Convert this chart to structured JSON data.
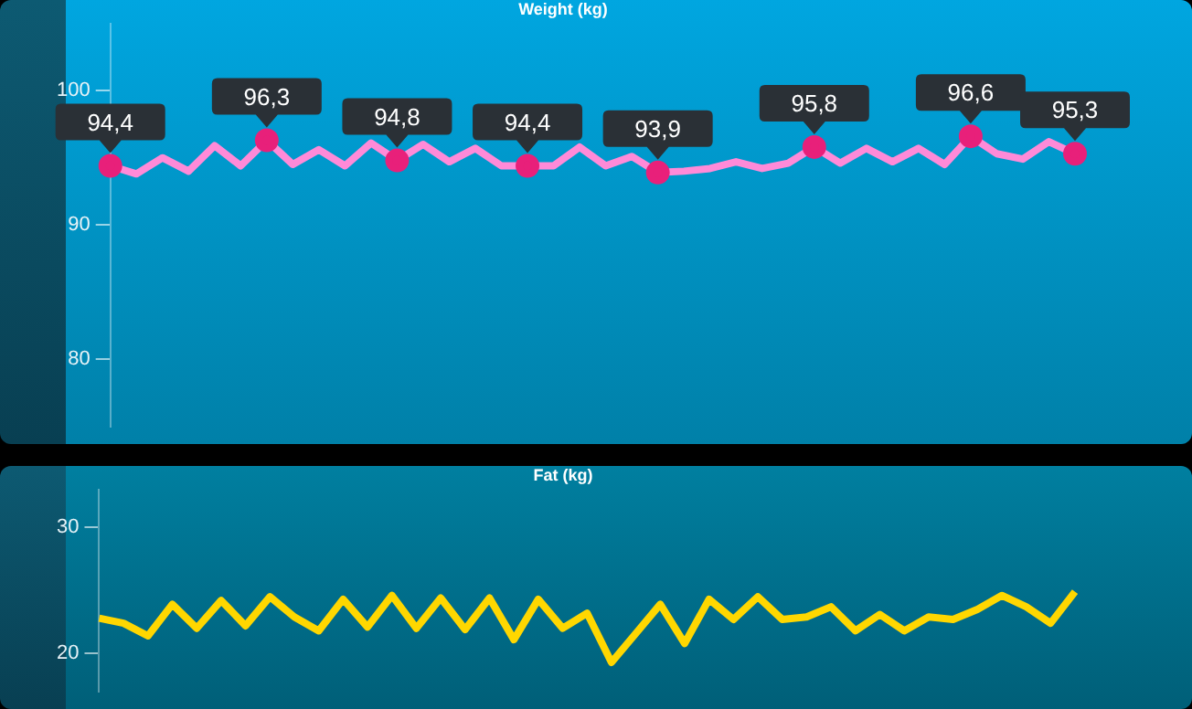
{
  "chart_data": [
    {
      "type": "line",
      "title": "Weight (kg)",
      "categories": [
        null,
        null,
        null,
        null,
        null,
        null,
        null,
        null,
        null,
        null,
        null,
        null,
        null,
        null,
        null,
        null,
        null,
        null,
        null,
        null,
        null,
        null,
        null,
        null,
        null,
        null,
        null,
        null,
        null,
        null,
        null,
        null,
        null,
        null,
        null,
        null,
        null,
        null
      ],
      "series": [
        {
          "color": "#ff8ad8",
          "values": [
            94.4,
            93.8,
            95.0,
            94.0,
            95.9,
            94.4,
            96.3,
            94.5,
            95.6,
            94.4,
            96.1,
            94.8,
            96.0,
            94.7,
            95.7,
            94.4,
            94.4,
            94.4,
            95.8,
            94.4,
            95.1,
            93.9,
            94.0,
            94.2,
            94.7,
            94.2,
            94.6,
            95.8,
            94.6,
            95.7,
            94.7,
            95.7,
            94.5,
            96.6,
            95.3,
            94.9,
            96.2,
            95.3
          ],
          "value_labels": [
            "94,4",
            null,
            null,
            null,
            null,
            null,
            "96,3",
            null,
            null,
            null,
            null,
            "94,8",
            null,
            null,
            null,
            null,
            "94,4",
            null,
            null,
            null,
            null,
            "93,9",
            null,
            null,
            null,
            null,
            null,
            "95,8",
            null,
            null,
            null,
            null,
            null,
            "96,6",
            null,
            null,
            null,
            "95,3"
          ]
        }
      ],
      "ylim": [
        75,
        105
      ],
      "yticks": [
        80,
        90,
        100
      ],
      "grid": false,
      "legend": false,
      "tick_labels": "y"
    },
    {
      "type": "line",
      "title": "Fat (kg)",
      "categories": [
        null,
        null,
        null,
        null,
        null,
        null,
        null,
        null,
        null,
        null,
        null,
        null,
        null,
        null,
        null,
        null,
        null,
        null,
        null,
        null,
        null,
        null,
        null,
        null,
        null,
        null,
        null,
        null,
        null,
        null,
        null,
        null,
        null,
        null,
        null,
        null,
        null,
        null,
        null,
        null,
        null
      ],
      "series": [
        {
          "color": "#ffd700",
          "values": [
            22.8,
            22.4,
            21.4,
            23.9,
            22.0,
            24.2,
            22.2,
            24.5,
            22.9,
            21.8,
            24.3,
            22.1,
            24.6,
            22.0,
            24.4,
            21.9,
            24.4,
            21.1,
            24.3,
            22.0,
            23.2,
            19.3,
            21.6,
            23.9,
            20.8,
            24.3,
            22.7,
            24.5,
            22.7,
            22.9,
            23.7,
            21.8,
            23.1,
            21.8,
            22.9,
            22.7,
            23.5,
            24.6,
            23.7,
            22.4,
            24.9
          ]
        }
      ],
      "ylim": [
        17,
        33
      ],
      "yticks": [
        20,
        30
      ],
      "grid": false,
      "legend": false,
      "tick_labels": "y"
    }
  ]
}
